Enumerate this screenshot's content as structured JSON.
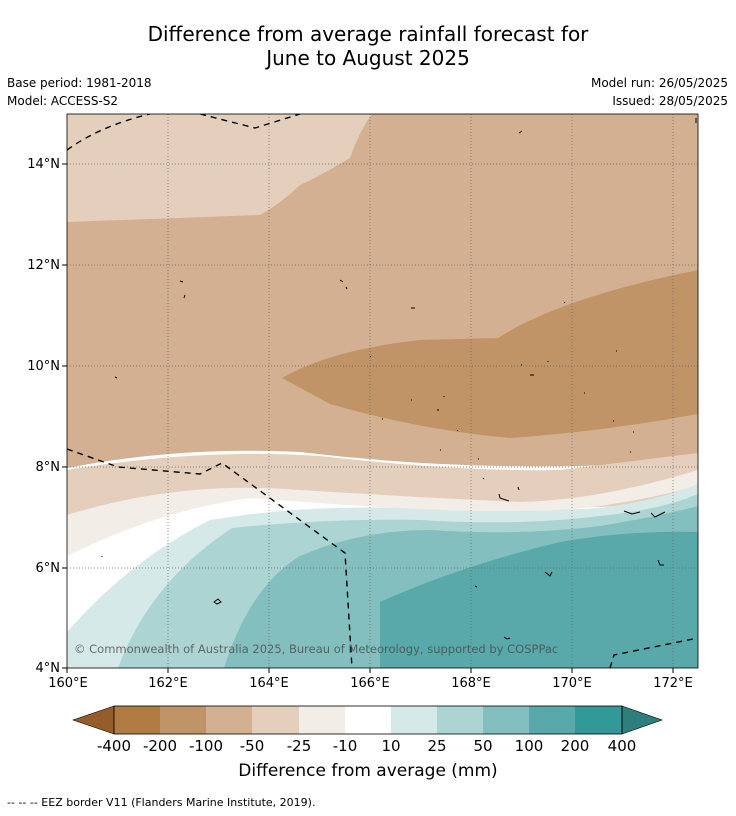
{
  "title": {
    "line1": "Difference from average rainfall forecast for",
    "line2": "June to August 2025"
  },
  "meta_left": {
    "base_period": "Base period: 1981-2018",
    "model": "Model: ACCESS-S2"
  },
  "meta_right": {
    "model_run": "Model run: 26/05/2025",
    "issued": "Issued: 28/05/2025"
  },
  "map": {
    "lon_labels": [
      "160°E",
      "162°E",
      "164°E",
      "166°E",
      "168°E",
      "170°E",
      "172°E"
    ],
    "lat_labels": [
      "14°N",
      "12°N",
      "10°N",
      "8°N",
      "6°N",
      "4°N"
    ],
    "copyright": "© Commonwealth of Australia 2025, Bureau of Meteorology, supported by COSPPac"
  },
  "colorbar": {
    "title": "Difference from average (mm)",
    "tick_labels": [
      "-400",
      "-200",
      "-100",
      "-50",
      "-25",
      "-10",
      "10",
      "25",
      "50",
      "100",
      "200",
      "400"
    ],
    "colors": {
      "lt-400": "#955d29",
      "-400to-200": "#b07a43",
      "-200to-100": "#c19467",
      "-100to-50": "#d2b091",
      "-50to-25": "#e4cfbc",
      "-25to-10": "#f2ede7",
      "-10to10": "#ffffff",
      "10to25": "#d5e9e8",
      "25to50": "#abd4d3",
      "50to100": "#84bfbf",
      "100to200": "#5aa9aa",
      "200to400": "#329998",
      "gt400": "#2d7e7d"
    }
  },
  "legend_note": "--  --  -- EEZ border V11 (Flanders Marine Institute, 2019)."
}
